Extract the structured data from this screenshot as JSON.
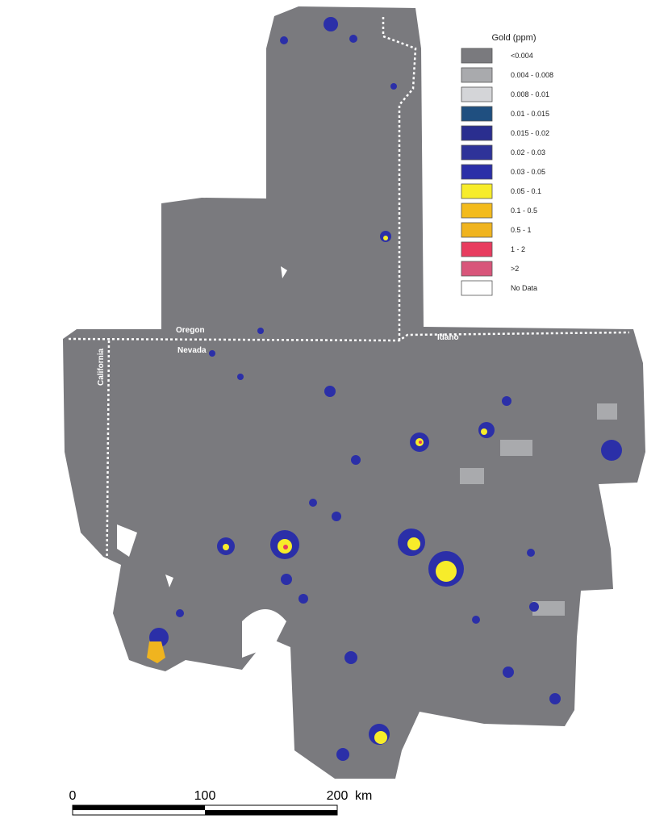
{
  "legend": {
    "title": "Gold (ppm)",
    "items": [
      {
        "label": "<0.004",
        "color": "#7a7a7e"
      },
      {
        "label": "0.004 - 0.008",
        "color": "#a9aaad"
      },
      {
        "label": "0.008 - 0.01",
        "color": "#d4d5d8"
      },
      {
        "label": "0.01 - 0.015",
        "color": "#1f4f80"
      },
      {
        "label": "0.015 - 0.02",
        "color": "#2a2e8f"
      },
      {
        "label": "0.02 - 0.03",
        "color": "#2e3399"
      },
      {
        "label": "0.03 - 0.05",
        "color": "#2b2fa8"
      },
      {
        "label": "0.05 - 0.1",
        "color": "#f7ec2a"
      },
      {
        "label": "0.1 - 0.5",
        "color": "#f3bb1c"
      },
      {
        "label": "0.5 - 1",
        "color": "#f0b41f"
      },
      {
        "label": "1 - 2",
        "color": "#e83c5f"
      },
      {
        "label": ">2",
        "color": "#d8557a"
      },
      {
        "label": "No Data",
        "color": "#ffffff"
      }
    ]
  },
  "labels": {
    "oregon": "Oregon",
    "nevada": "Nevada",
    "idaho": "Idaho",
    "california": "California"
  },
  "scale_bar": {
    "ticks": [
      0,
      100,
      200
    ],
    "unit": "km"
  }
}
